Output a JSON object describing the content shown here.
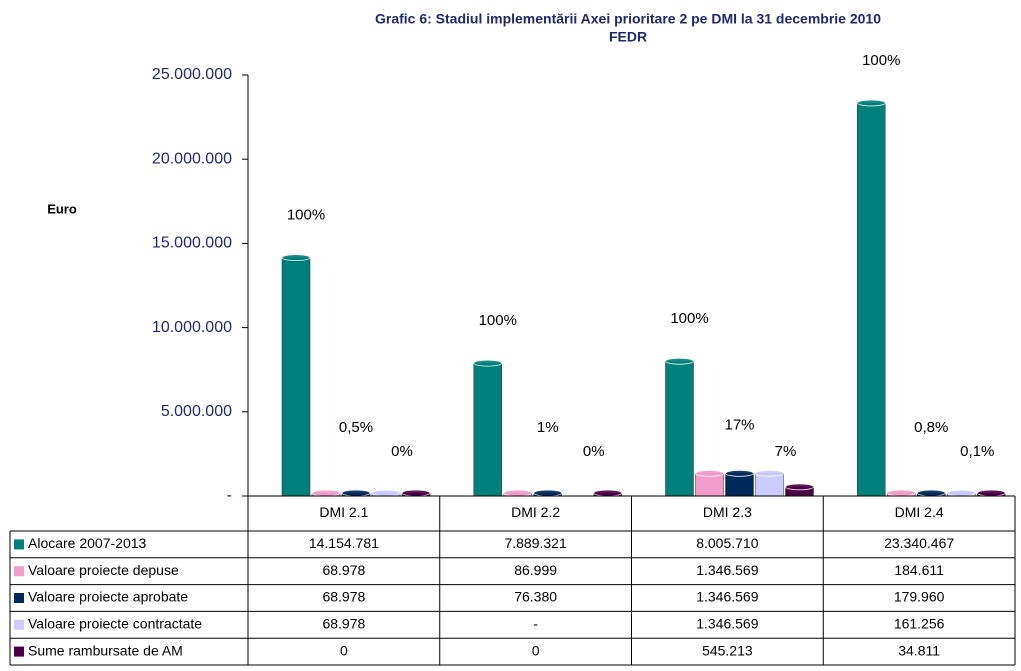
{
  "chart_data": {
    "type": "bar",
    "title": "Grafic 6: Stadiul implementării Axei prioritare 2 pe DMI la 31 decembrie 2010",
    "subtitle": "FEDR",
    "y_label": "Euro",
    "categories": [
      "DMI 2.1",
      "DMI 2.2",
      "DMI 2.3",
      "DMI 2.4"
    ],
    "series": [
      {
        "name": "Alocare 2007-2013",
        "color": "#00807a",
        "values": [
          14154781,
          7889321,
          8005710,
          23340467
        ],
        "value_labels": [
          "14.154.781",
          "7.889.321",
          "8.005.710",
          "23.340.467"
        ]
      },
      {
        "name": "Valoare proiecte depuse",
        "color": "#f29ccc",
        "values": [
          68978,
          86999,
          1346569,
          184611
        ],
        "value_labels": [
          "68.978",
          "86.999",
          "1.346.569",
          "184.611"
        ]
      },
      {
        "name": "Valoare proiecte aprobate",
        "color": "#00285a",
        "values": [
          68978,
          76380,
          1346569,
          179960
        ],
        "value_labels": [
          "68.978",
          "76.380",
          "1.346.569",
          "179.960"
        ]
      },
      {
        "name": "Valoare proiecte contractate",
        "color": "#ccccff",
        "values": [
          68978,
          null,
          1346569,
          161256
        ],
        "value_labels": [
          "68.978",
          "-",
          "1.346.569",
          "161.256"
        ]
      },
      {
        "name": "Sume rambursate de AM",
        "color": "#4b0045",
        "values": [
          0,
          0,
          545213,
          34811
        ],
        "value_labels": [
          "0",
          "0",
          "545.213",
          "34.811"
        ]
      }
    ],
    "percent_labels": [
      [
        "100%",
        "0,5%",
        "0%"
      ],
      [
        "100%",
        "1%",
        "0%"
      ],
      [
        "100%",
        "17%",
        "7%"
      ],
      [
        "100%",
        "0,8%",
        "0,1%"
      ]
    ],
    "ylim": [
      0,
      25000000
    ],
    "yticks": [
      {
        "value": 0,
        "label": "-"
      },
      {
        "value": 5000000,
        "label": "5.000.000"
      },
      {
        "value": 10000000,
        "label": "10.000.000"
      },
      {
        "value": 15000000,
        "label": "15.000.000"
      },
      {
        "value": 20000000,
        "label": "20.000.000"
      },
      {
        "value": 25000000,
        "label": "25.000.000"
      }
    ]
  }
}
